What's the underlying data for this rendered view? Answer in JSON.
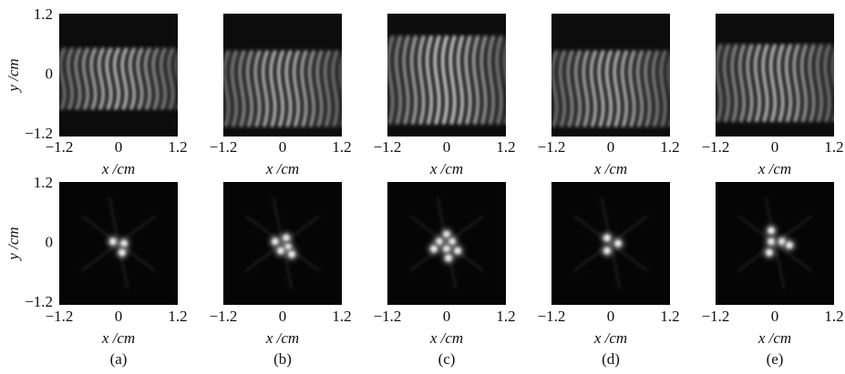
{
  "x_label": "x /cm",
  "y_label": "y /cm",
  "x_ticks": [
    "−1.2",
    "0",
    "1.2"
  ],
  "y_ticks": [
    "1.2",
    "0",
    "−1.2"
  ],
  "captions": [
    "(a)",
    "(b)",
    "(c)",
    "(d)",
    "(e)"
  ]
}
